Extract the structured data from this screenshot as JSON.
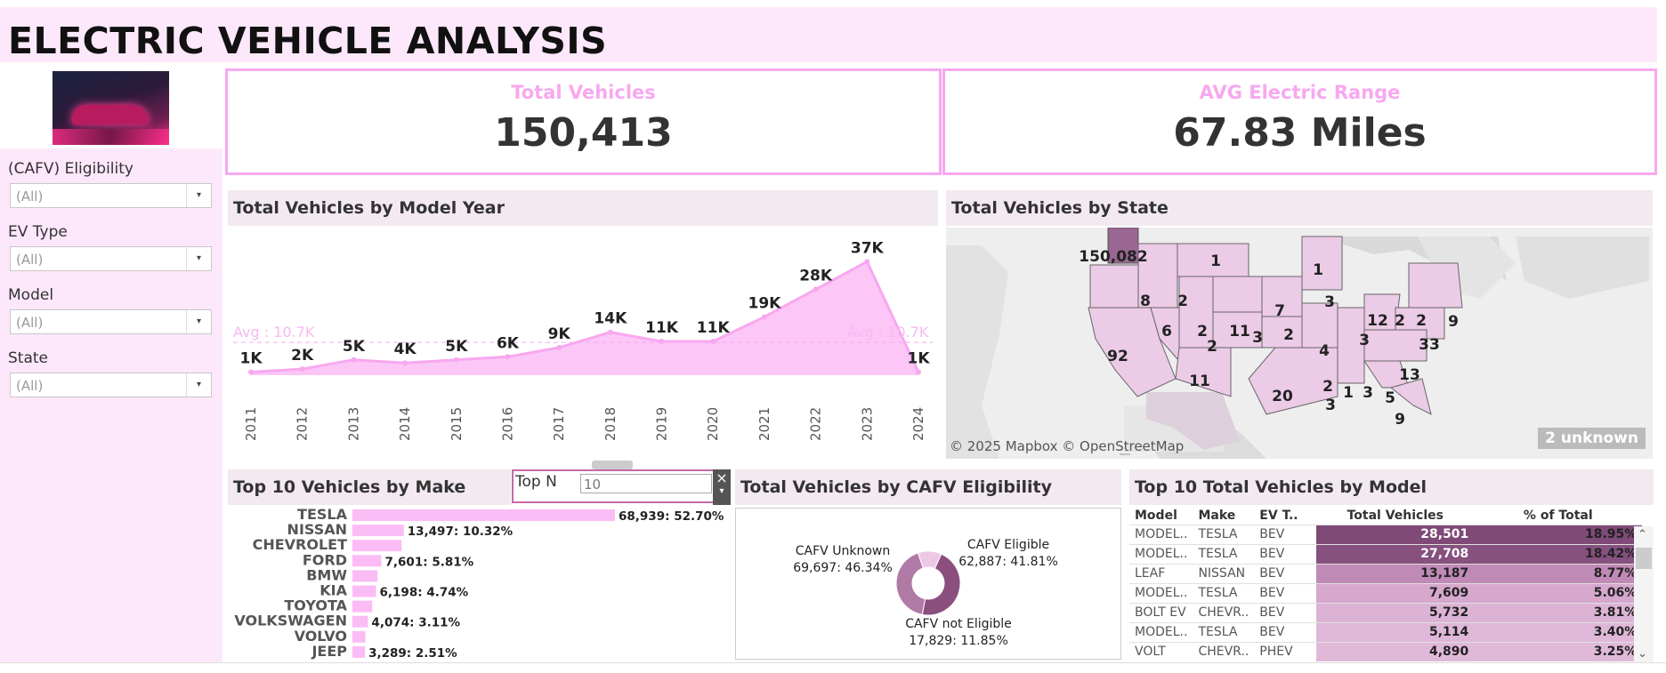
{
  "title": "ELECTRIC VEHICLE ANALYSIS",
  "filters": [
    {
      "label": "(CAFV) Eligibility",
      "value": "(All)"
    },
    {
      "label": "EV Type",
      "value": "(All)"
    },
    {
      "label": "Model",
      "value": "(All)"
    },
    {
      "label": "State",
      "value": "(All)"
    }
  ],
  "kpis": {
    "total_title": "Total Vehicles",
    "total_value": "150,413",
    "range_title": "AVG Electric Range",
    "range_value": "67.83 Miles"
  },
  "panels": {
    "year_title": "Total Vehicles by Model Year",
    "state_title": "Total Vehicles by State",
    "make_title": "Top 10 Vehicles by Make",
    "cafv_title": "Total Vehicles by CAFV Eligibility",
    "model_title": "Top 10 Total Vehicles by Model"
  },
  "year_chart": {
    "type": "area",
    "avg_label": "Avg : 10.7K",
    "avg_value": 10700,
    "ylim": [
      0,
      40000
    ],
    "years": [
      "2011",
      "2012",
      "2013",
      "2014",
      "2015",
      "2016",
      "2017",
      "2018",
      "2019",
      "2020",
      "2021",
      "2022",
      "2023",
      "2024"
    ],
    "values": [
      1000,
      2000,
      5000,
      4000,
      5000,
      6000,
      9000,
      14000,
      11000,
      11000,
      19000,
      28000,
      37000,
      1000
    ],
    "labels": [
      "1K",
      "2K",
      "5K",
      "4K",
      "5K",
      "6K",
      "9K",
      "14K",
      "11K",
      "11K",
      "19K",
      "28K",
      "37K",
      "1K"
    ],
    "color": "#fbbcf5",
    "line_color": "#f7a8f0"
  },
  "state_map": {
    "credit": "© 2025 Mapbox © OpenStreetMap",
    "unknown": "2 unknown",
    "labels": [
      "150,082",
      "1",
      "1",
      "8",
      "2",
      "2",
      "3",
      "7",
      "3",
      "12",
      "2",
      "2",
      "33",
      "9",
      "92",
      "6",
      "2",
      "11",
      "2",
      "4",
      "3",
      "13",
      "2",
      "1",
      "3",
      "5",
      "11",
      "20",
      "3",
      "9"
    ]
  },
  "topn": {
    "label": "Top N",
    "value": "10"
  },
  "make_chart": {
    "type": "bar",
    "categories": [
      "TESLA",
      "NISSAN",
      "CHEVROLET",
      "FORD",
      "BMW",
      "KIA",
      "TOYOTA",
      "VOLKSWAGEN",
      "VOLVO",
      "JEEP"
    ],
    "values": [
      68939,
      13497,
      12900,
      7601,
      6600,
      6198,
      5200,
      4074,
      3400,
      3289
    ],
    "labels": [
      "68,939: 52.70%",
      "13,497: 10.32%",
      "",
      "7,601: 5.81%",
      "",
      "6,198: 4.74%",
      "",
      "4,074: 3.11%",
      "",
      "3,289: 2.51%"
    ],
    "color": "#fbbcf5"
  },
  "cafv_chart": {
    "type": "pie",
    "slices": [
      {
        "name": "CAFV Unknown",
        "value": 69697,
        "label": "69,697: 46.34%",
        "color": "#8a4f7d"
      },
      {
        "name": "CAFV Eligible",
        "value": 62887,
        "label": "62,887: 41.81%",
        "color": "#b07aa6"
      },
      {
        "name": "CAFV not Eligible",
        "value": 17829,
        "label": "17,829: 11.85%",
        "color": "#ecc8e6"
      }
    ]
  },
  "model_table": {
    "headers": [
      "Model",
      "Make",
      "EV T..",
      "Total Vehicles",
      "% of Total"
    ],
    "rows": [
      {
        "model": "MODEL..",
        "make": "TESLA",
        "ev": "BEV",
        "total": "28,501",
        "pct": "18.95%",
        "shade": "#7f4a78"
      },
      {
        "model": "MODEL..",
        "make": "TESLA",
        "ev": "BEV",
        "total": "27,708",
        "pct": "18.42%",
        "shade": "#86507f"
      },
      {
        "model": "LEAF",
        "make": "NISSAN",
        "ev": "BEV",
        "total": "13,187",
        "pct": "8.77%",
        "shade": "#c08ab7"
      },
      {
        "model": "MODEL..",
        "make": "TESLA",
        "ev": "BEV",
        "total": "7,609",
        "pct": "5.06%",
        "shade": "#d6a8ce"
      },
      {
        "model": "BOLT EV",
        "make": "CHEVR..",
        "ev": "BEV",
        "total": "5,732",
        "pct": "3.81%",
        "shade": "#ddb3d5"
      },
      {
        "model": "MODEL..",
        "make": "TESLA",
        "ev": "BEV",
        "total": "5,114",
        "pct": "3.40%",
        "shade": "#dfb7d8"
      },
      {
        "model": "VOLT",
        "make": "CHEVR..",
        "ev": "PHEV",
        "total": "4,890",
        "pct": "3.25%",
        "shade": "#e0b9d9"
      }
    ]
  }
}
